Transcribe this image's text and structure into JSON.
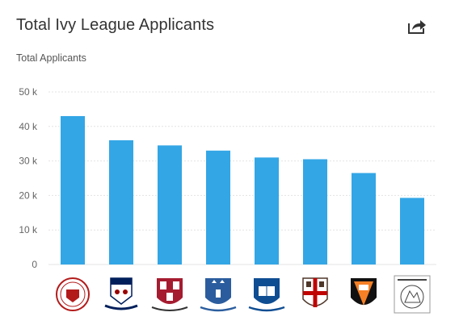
{
  "colors": {
    "bar": "#33a6e6",
    "grid": "#e3e3e3",
    "title": "#333333",
    "tick": "#666666"
  },
  "share_icon": "share-icon",
  "chart_data": {
    "type": "bar",
    "title": "Total Ivy League Applicants",
    "ylabel": "Total Applicants",
    "xlabel": "",
    "ylim": [
      0,
      50000
    ],
    "yticks": [
      0,
      10000,
      20000,
      30000,
      40000,
      50000
    ],
    "ytick_labels": [
      "0",
      "10 k",
      "20 k",
      "30 k",
      "40 k",
      "50 k"
    ],
    "categories": [
      "Cornell",
      "Penn",
      "Harvard",
      "Columbia",
      "Yale",
      "Brown",
      "Princeton",
      "Dartmouth"
    ],
    "category_display": "university seal logos",
    "values": [
      43000,
      36000,
      34500,
      33000,
      31000,
      30500,
      26500,
      19300
    ],
    "grid": true,
    "legend": "none"
  }
}
